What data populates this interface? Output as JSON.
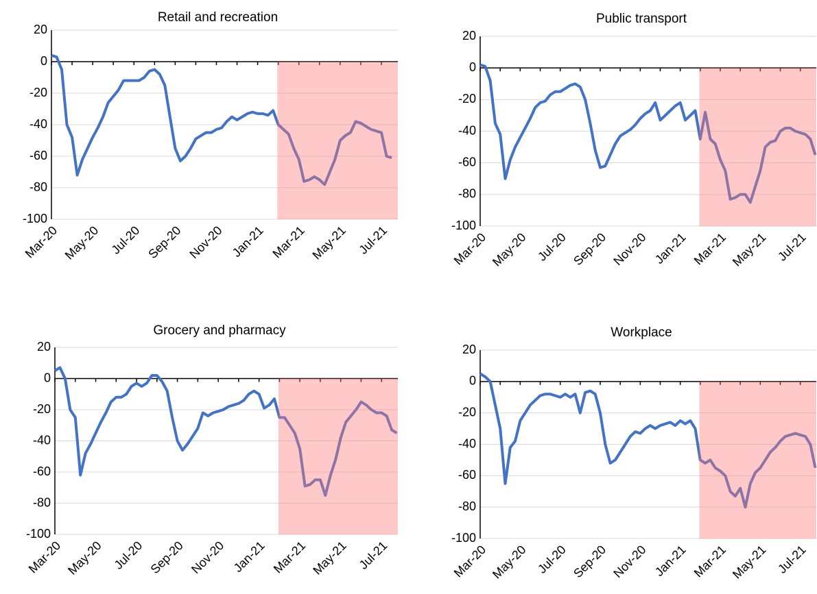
{
  "chart_data": [
    {
      "type": "line",
      "title": "Retail and recreation",
      "color": "#4472c4",
      "grid": true,
      "categories": [
        "Mar-20",
        null,
        null,
        null,
        null,
        null,
        null,
        null,
        "May-20",
        null,
        null,
        null,
        null,
        null,
        null,
        null,
        "Jul-20",
        null,
        null,
        null,
        null,
        null,
        null,
        null,
        "Sep-20",
        null,
        null,
        null,
        null,
        null,
        null,
        null,
        "Nov-20",
        null,
        null,
        null,
        null,
        null,
        null,
        null,
        "Jan-21",
        null,
        null,
        null,
        null,
        null,
        null,
        null,
        "Mar-21",
        null,
        null,
        null,
        null,
        null,
        null,
        null,
        "May-21",
        null,
        null,
        null,
        null,
        null,
        null,
        null,
        "Jul-21",
        null,
        null,
        null
      ],
      "values": [
        4,
        3,
        -5,
        -40,
        -48,
        -72,
        -62,
        -55,
        -48,
        -42,
        -35,
        -26,
        -22,
        -18,
        -12,
        -12,
        -12,
        -12,
        -10,
        -6,
        -5,
        -8,
        -15,
        -35,
        -55,
        -63,
        -60,
        -55,
        -49,
        -47,
        -45,
        -45,
        -43,
        -42,
        -38,
        -35,
        -37,
        -35,
        -33,
        -32,
        -33,
        -33,
        -34,
        -31,
        -40,
        -43,
        -46,
        -55,
        -62,
        -76,
        -75,
        -73,
        -75,
        -78,
        -70,
        -62,
        -50,
        -47,
        -45,
        -38,
        -39,
        -41,
        -43,
        -44,
        -45,
        -60,
        -61,
        null
      ],
      "ylim": [
        -100,
        20
      ],
      "yticks": [
        20,
        0,
        -20,
        -40,
        -60,
        -80,
        -100
      ]
    },
    {
      "type": "line",
      "title": "Public transport",
      "color": "#4472c4",
      "grid": true,
      "categories": [
        "Mar-20",
        null,
        null,
        null,
        null,
        null,
        null,
        null,
        "May-20",
        null,
        null,
        null,
        null,
        null,
        null,
        null,
        "Jul-20",
        null,
        null,
        null,
        null,
        null,
        null,
        null,
        "Sep-20",
        null,
        null,
        null,
        null,
        null,
        null,
        null,
        "Nov-20",
        null,
        null,
        null,
        null,
        null,
        null,
        null,
        "Jan-21",
        null,
        null,
        null,
        null,
        null,
        null,
        null,
        "Mar-21",
        null,
        null,
        null,
        null,
        null,
        null,
        null,
        "May-21",
        null,
        null,
        null,
        null,
        null,
        null,
        null,
        "Jul-21",
        null,
        null,
        null
      ],
      "values": [
        2,
        1,
        -8,
        -35,
        -42,
        -70,
        -58,
        -50,
        -44,
        -38,
        -32,
        -25,
        -22,
        -21,
        -17,
        -15,
        -15,
        -13,
        -11,
        -10,
        -12,
        -20,
        -35,
        -52,
        -63,
        -62,
        -55,
        -48,
        -43,
        -41,
        -39,
        -36,
        -32,
        -29,
        -27,
        -22,
        -33,
        -30,
        -27,
        -24,
        -22,
        -33,
        -30,
        -27,
        -45,
        -28,
        -45,
        -48,
        -58,
        -65,
        -83,
        -82,
        -80,
        -80,
        -85,
        -75,
        -65,
        -50,
        -47,
        -46,
        -40,
        -38,
        -38,
        -40,
        -41,
        -42,
        -45,
        -55
      ],
      "ylim": [
        -100,
        20
      ],
      "yticks": [
        20,
        0,
        -20,
        -40,
        -60,
        -80,
        -100
      ]
    },
    {
      "type": "line",
      "title": "Grocery and pharmacy",
      "color": "#4472c4",
      "grid": true,
      "categories": [
        "Mar-20",
        null,
        null,
        null,
        null,
        null,
        null,
        null,
        "May-20",
        null,
        null,
        null,
        null,
        null,
        null,
        null,
        "Jul-20",
        null,
        null,
        null,
        null,
        null,
        null,
        null,
        "Sep-20",
        null,
        null,
        null,
        null,
        null,
        null,
        null,
        "Nov-20",
        null,
        null,
        null,
        null,
        null,
        null,
        null,
        "Jan-21",
        null,
        null,
        null,
        null,
        null,
        null,
        null,
        "Mar-21",
        null,
        null,
        null,
        null,
        null,
        null,
        null,
        "May-21",
        null,
        null,
        null,
        null,
        null,
        null,
        null,
        "Jul-21",
        null,
        null,
        null
      ],
      "values": [
        5,
        7,
        0,
        -20,
        -25,
        -62,
        -48,
        -42,
        -35,
        -28,
        -22,
        -15,
        -12,
        -12,
        -10,
        -5,
        -3,
        -5,
        -3,
        2,
        2,
        -2,
        -8,
        -25,
        -40,
        -46,
        -42,
        -37,
        -32,
        -22,
        -24,
        -22,
        -21,
        -20,
        -18,
        -17,
        -16,
        -14,
        -10,
        -8,
        -10,
        -19,
        -17,
        -13,
        -25,
        -25,
        -30,
        -35,
        -45,
        -69,
        -68,
        -65,
        -65,
        -75,
        -62,
        -52,
        -38,
        -28,
        -24,
        -20,
        -15,
        -17,
        -20,
        -22,
        -22,
        -24,
        -33,
        -35
      ],
      "ylim": [
        -100,
        20
      ],
      "yticks": [
        20,
        0,
        -20,
        -40,
        -60,
        -80,
        -100
      ]
    },
    {
      "type": "line",
      "title": "Workplace",
      "color": "#4472c4",
      "grid": true,
      "categories": [
        "Mar-20",
        null,
        null,
        null,
        null,
        null,
        null,
        null,
        "May-20",
        null,
        null,
        null,
        null,
        null,
        null,
        null,
        "Jul-20",
        null,
        null,
        null,
        null,
        null,
        null,
        null,
        "Sep-20",
        null,
        null,
        null,
        null,
        null,
        null,
        null,
        "Nov-20",
        null,
        null,
        null,
        null,
        null,
        null,
        null,
        "Jan-21",
        null,
        null,
        null,
        null,
        null,
        null,
        null,
        "Mar-21",
        null,
        null,
        null,
        null,
        null,
        null,
        null,
        "May-21",
        null,
        null,
        null,
        null,
        null,
        null,
        null,
        "Jul-21",
        null,
        null,
        null
      ],
      "values": [
        5,
        3,
        0,
        -15,
        -30,
        -65,
        -42,
        -38,
        -25,
        -20,
        -15,
        -12,
        -9,
        -8,
        -8,
        -9,
        -10,
        -8,
        -10,
        -8,
        -20,
        -7,
        -6,
        -8,
        -20,
        -40,
        -52,
        -50,
        -45,
        -40,
        -35,
        -32,
        -33,
        -30,
        -28,
        -30,
        -28,
        -27,
        -26,
        -28,
        -25,
        -27,
        -25,
        -30,
        -50,
        -52,
        -50,
        -55,
        -57,
        -60,
        -70,
        -73,
        -68,
        -80,
        -65,
        -58,
        -55,
        -50,
        -45,
        -42,
        -38,
        -35,
        -34,
        -33,
        -34,
        -35,
        -40,
        -55
      ],
      "ylim": [
        -100,
        20
      ],
      "yticks": [
        20,
        0,
        -20,
        -40,
        -60,
        -80,
        -100
      ]
    }
  ]
}
